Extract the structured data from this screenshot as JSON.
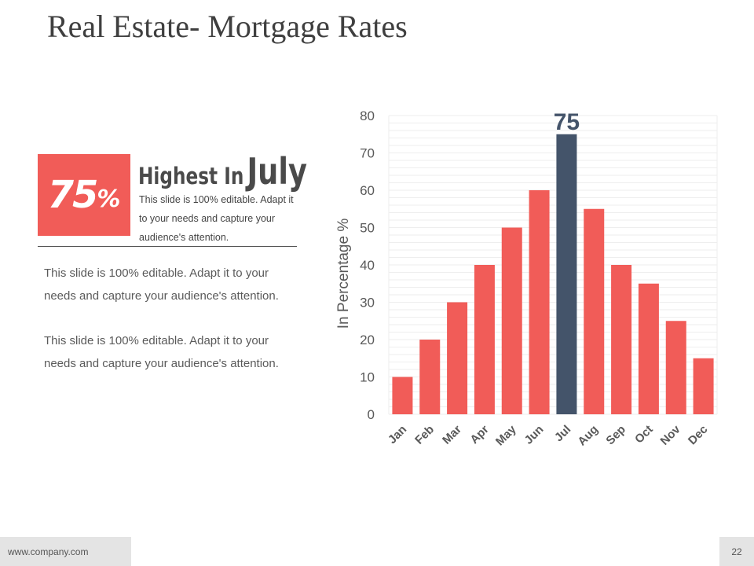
{
  "slide": {
    "title": "Real Estate- Mortgage Rates",
    "footer_url": "www.company.com",
    "page_number": "22"
  },
  "highlight": {
    "value": "75",
    "unit": "%",
    "heading_prefix": "Highest  In",
    "heading_month": "July",
    "description": "This slide is 100% editable. Adapt it to your needs and capture your audience's attention."
  },
  "paragraphs": [
    "This slide is 100% editable. Adapt it to your needs and capture your audience's attention.",
    "This slide is 100% editable. Adapt it to your needs and capture your audience's attention."
  ],
  "colors": {
    "bar": "#f15c58",
    "highlight_bar": "#44546a",
    "axis_text": "#595959",
    "grid": "#eeeeee"
  },
  "chart_data": {
    "type": "bar",
    "title": "",
    "xlabel": "",
    "ylabel": "In Percentage %",
    "categories": [
      "Jan",
      "Feb",
      "Mar",
      "Apr",
      "May",
      "Jun",
      "Jul",
      "Aug",
      "Sep",
      "Oct",
      "Nov",
      "Dec"
    ],
    "values": [
      10,
      20,
      30,
      40,
      50,
      60,
      75,
      55,
      40,
      35,
      25,
      15
    ],
    "ylim": [
      0,
      80
    ],
    "y_ticks": [
      0,
      10,
      20,
      30,
      40,
      50,
      60,
      70,
      80
    ],
    "highlight_category": "Jul",
    "highlight_label": "75",
    "grid": true
  }
}
